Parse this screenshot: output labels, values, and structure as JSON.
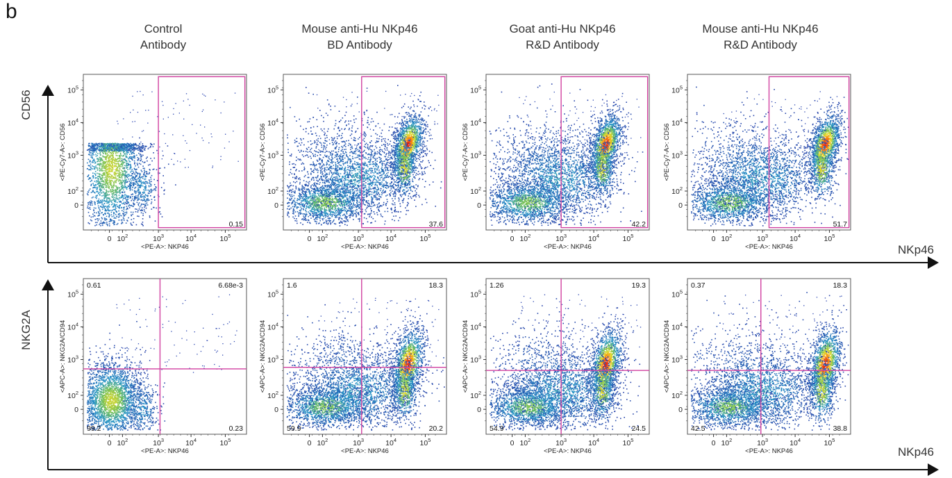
{
  "panel_letter": "b",
  "columns": [
    {
      "line1": "Control",
      "line2": "Antibody"
    },
    {
      "line1": "Mouse anti-Hu NKp46",
      "line2": "BD Antibody"
    },
    {
      "line1": "Goat anti-Hu NKp46",
      "line2": "R&D Antibody"
    },
    {
      "line1": "Mouse anti-Hu NKp46",
      "line2": "R&D Antibody"
    }
  ],
  "rows": [
    {
      "label": "CD56"
    },
    {
      "label": "NKG2A"
    }
  ],
  "x_axis_label": "NKp46",
  "colors": {
    "gate": "#d03f9f",
    "axis": "#111111",
    "density_low": "#1f3fa8",
    "density_high": "#e01010"
  },
  "chart_data": [
    {
      "type": "scatter",
      "panel": "CD56 vs NKp46 — Control Antibody",
      "xlabel": "<PE-A>: NKP46",
      "ylabel": "<PE-Cy7-A>: CD56",
      "x_scale": "biexponential",
      "y_scale": "biexponential",
      "x_ticks": [
        "0",
        "10²",
        "10³",
        "10⁴",
        "10⁵"
      ],
      "y_ticks": [
        "0",
        "10²",
        "10³",
        "10⁴",
        "10⁵"
      ],
      "gate": "NKp46+ CD56+",
      "gate_values": {
        "upper_right": "0.15"
      }
    },
    {
      "type": "scatter",
      "panel": "CD56 vs NKp46 — Mouse anti-Hu NKp46 BD Antibody",
      "xlabel": "<PE-A>: NKP46",
      "ylabel": "<PE-Cy7-A>: CD56",
      "x_scale": "biexponential",
      "y_scale": "biexponential",
      "x_ticks": [
        "0",
        "10²",
        "10³",
        "10⁴",
        "10⁵"
      ],
      "y_ticks": [
        "0",
        "10²",
        "10³",
        "10⁴",
        "10⁵"
      ],
      "gate": "NKp46+ CD56+",
      "gate_values": {
        "upper_right": "37.6"
      }
    },
    {
      "type": "scatter",
      "panel": "CD56 vs NKp46 — Goat anti-Hu NKp46 R&D Antibody",
      "xlabel": "<PE-A>: NKP46",
      "ylabel": "<PE-Cy7-A>: CD56",
      "x_scale": "biexponential",
      "y_scale": "biexponential",
      "x_ticks": [
        "0",
        "10²",
        "10³",
        "10⁴",
        "10⁵"
      ],
      "y_ticks": [
        "0",
        "10²",
        "10³",
        "10⁴",
        "10⁵"
      ],
      "gate": "NKp46+ CD56+",
      "gate_values": {
        "upper_right": "42.2"
      }
    },
    {
      "type": "scatter",
      "panel": "CD56 vs NKp46 — Mouse anti-Hu NKp46 R&D Antibody",
      "xlabel": "<PE-A>: NKP46",
      "ylabel": "<PE-Cy7-A>: CD56",
      "x_scale": "biexponential",
      "y_scale": "biexponential",
      "x_ticks": [
        "0",
        "10²",
        "10³",
        "10⁴",
        "10⁵"
      ],
      "y_ticks": [
        "0",
        "10²",
        "10³",
        "10⁴",
        "10⁵"
      ],
      "gate": "NKp46+ CD56+",
      "gate_values": {
        "upper_right": "51.7"
      }
    },
    {
      "type": "scatter",
      "panel": "NKG2A vs NKp46 — Control Antibody",
      "xlabel": "<PE-A>: NKP46",
      "ylabel": "<APC-A>: NKG2A/CD94",
      "x_scale": "biexponential",
      "y_scale": "biexponential",
      "x_ticks": [
        "0",
        "10²",
        "10³",
        "10⁴",
        "10⁵"
      ],
      "y_ticks": [
        "0",
        "10²",
        "10³",
        "10⁴",
        "10⁵"
      ],
      "gate": "quadrants",
      "quadrants": {
        "upper_left": "0.61",
        "upper_right": "6.68e-3",
        "lower_left": "99.2",
        "lower_right": "0.23"
      }
    },
    {
      "type": "scatter",
      "panel": "NKG2A vs NKp46 — Mouse anti-Hu NKp46 BD Antibody",
      "xlabel": "<PE-A>: NKP46",
      "ylabel": "<APC-A>: NKG2A/CD94",
      "x_scale": "biexponential",
      "y_scale": "biexponential",
      "x_ticks": [
        "0",
        "10²",
        "10³",
        "10⁴",
        "10⁵"
      ],
      "y_ticks": [
        "0",
        "10²",
        "10³",
        "10⁴",
        "10⁵"
      ],
      "gate": "quadrants",
      "quadrants": {
        "upper_left": "1.6",
        "upper_right": "18.3",
        "lower_left": "59.9",
        "lower_right": "20.2"
      }
    },
    {
      "type": "scatter",
      "panel": "NKG2A vs NKp46 — Goat anti-Hu NKp46 R&D Antibody",
      "xlabel": "<PE-A>: NKP46",
      "ylabel": "<APC-A>: NKG2A/CD94",
      "x_scale": "biexponential",
      "y_scale": "biexponential",
      "x_ticks": [
        "0",
        "10²",
        "10³",
        "10⁴",
        "10⁵"
      ],
      "y_ticks": [
        "0",
        "10²",
        "10³",
        "10⁴",
        "10⁵"
      ],
      "gate": "quadrants",
      "quadrants": {
        "upper_left": "1.26",
        "upper_right": "19.3",
        "lower_left": "54.9",
        "lower_right": "24.5"
      }
    },
    {
      "type": "scatter",
      "panel": "NKG2A vs NKp46 — Mouse anti-Hu NKp46 R&D Antibody",
      "xlabel": "<PE-A>: NKP46",
      "ylabel": "<APC-A>: NKG2A/CD94",
      "x_scale": "biexponential",
      "y_scale": "biexponential",
      "x_ticks": [
        "0",
        "10²",
        "10³",
        "10⁴",
        "10⁵"
      ],
      "y_ticks": [
        "0",
        "10²",
        "10³",
        "10⁴",
        "10⁵"
      ],
      "gate": "quadrants",
      "quadrants": {
        "upper_left": "0.37",
        "upper_right": "18.3",
        "lower_left": "42.5",
        "lower_right": "38.8"
      }
    }
  ]
}
